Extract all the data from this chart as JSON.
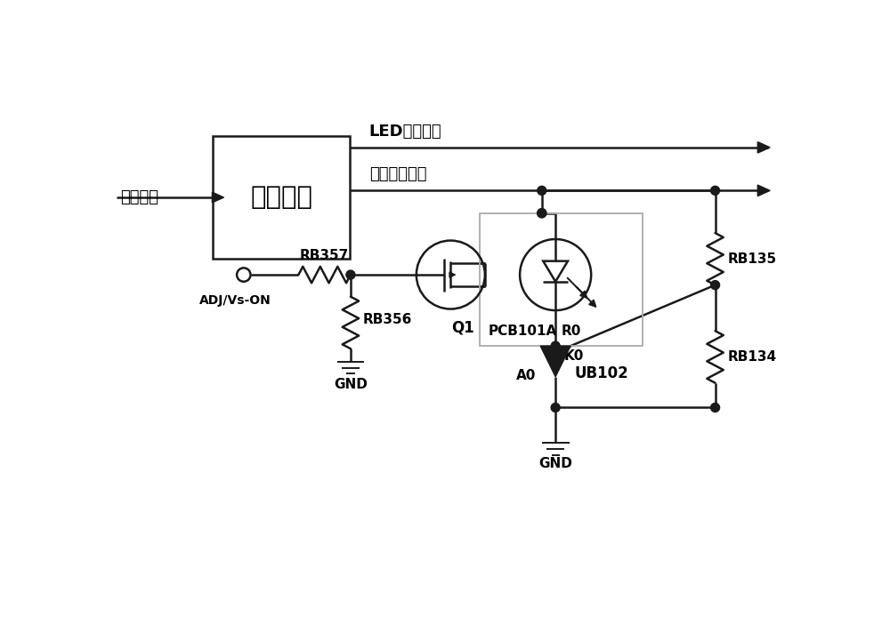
{
  "bg_color": "#ffffff",
  "line_color": "#1a1a1a",
  "gray_color": "#aaaaaa",
  "box_label": "供电电路",
  "input_label": "市电输入",
  "led_out_label": "LED供电输出",
  "main_out_label": "主板供电输出",
  "rb357_label": "RB357",
  "rb356_label": "RB356",
  "q1_label": "Q1",
  "pcb101a_label": "PCB101A",
  "ub102_label": "UB102",
  "rb135_label": "RB135",
  "rb134_label": "RB134",
  "k0_label": "K0",
  "r0_label": "R0",
  "a0_label": "A0",
  "gnd_label": "GND",
  "adj_label": "ADJ/Vs-ON",
  "figsize": [
    10.0,
    7.21
  ],
  "dpi": 100,
  "xlim": [
    0,
    10
  ],
  "ylim": [
    0,
    7.21
  ]
}
